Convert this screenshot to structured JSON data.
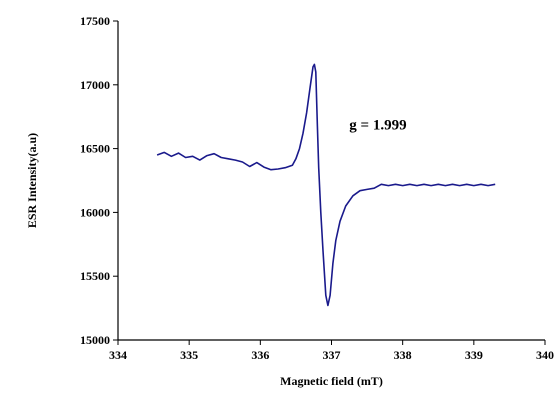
{
  "chart_data": {
    "type": "line",
    "title": "",
    "xlabel": "Magnetic field (mT)",
    "ylabel": "ESR Intensity(a.u)",
    "xlim": [
      334,
      340
    ],
    "ylim": [
      15000,
      17500
    ],
    "xticks": [
      334,
      335,
      336,
      337,
      338,
      339,
      340
    ],
    "yticks": [
      15000,
      15500,
      16000,
      16500,
      17000,
      17500
    ],
    "grid": false,
    "legend": "none",
    "annotation": {
      "text": "g = 1.999",
      "x": 337.25,
      "y": 16650
    },
    "series": [
      {
        "name": "",
        "color": "#1a1a8c",
        "points": [
          [
            334.55,
            16450
          ],
          [
            334.65,
            16470
          ],
          [
            334.75,
            16440
          ],
          [
            334.85,
            16465
          ],
          [
            334.95,
            16430
          ],
          [
            335.05,
            16440
          ],
          [
            335.15,
            16410
          ],
          [
            335.25,
            16445
          ],
          [
            335.35,
            16460
          ],
          [
            335.45,
            16430
          ],
          [
            335.55,
            16420
          ],
          [
            335.65,
            16410
          ],
          [
            335.75,
            16395
          ],
          [
            335.85,
            16360
          ],
          [
            335.95,
            16390
          ],
          [
            336.05,
            16355
          ],
          [
            336.15,
            16335
          ],
          [
            336.25,
            16340
          ],
          [
            336.35,
            16350
          ],
          [
            336.45,
            16370
          ],
          [
            336.5,
            16420
          ],
          [
            336.55,
            16500
          ],
          [
            336.6,
            16620
          ],
          [
            336.65,
            16780
          ],
          [
            336.7,
            16980
          ],
          [
            336.74,
            17140
          ],
          [
            336.76,
            17160
          ],
          [
            336.78,
            17100
          ],
          [
            336.8,
            16700
          ],
          [
            336.82,
            16350
          ],
          [
            336.85,
            16000
          ],
          [
            336.88,
            15700
          ],
          [
            336.92,
            15350
          ],
          [
            336.95,
            15270
          ],
          [
            336.98,
            15350
          ],
          [
            337.02,
            15600
          ],
          [
            337.06,
            15780
          ],
          [
            337.12,
            15930
          ],
          [
            337.2,
            16050
          ],
          [
            337.3,
            16130
          ],
          [
            337.4,
            16170
          ],
          [
            337.5,
            16180
          ],
          [
            337.6,
            16190
          ],
          [
            337.7,
            16220
          ],
          [
            337.8,
            16210
          ],
          [
            337.9,
            16220
          ],
          [
            338.0,
            16210
          ],
          [
            338.1,
            16220
          ],
          [
            338.2,
            16210
          ],
          [
            338.3,
            16220
          ],
          [
            338.4,
            16210
          ],
          [
            338.5,
            16220
          ],
          [
            338.6,
            16210
          ],
          [
            338.7,
            16220
          ],
          [
            338.8,
            16210
          ],
          [
            338.9,
            16220
          ],
          [
            339.0,
            16210
          ],
          [
            339.1,
            16220
          ],
          [
            339.2,
            16210
          ],
          [
            339.3,
            16220
          ]
        ]
      }
    ]
  }
}
